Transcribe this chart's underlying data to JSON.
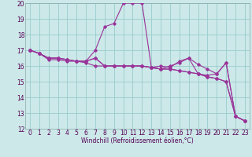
{
  "xlabel": "Windchill (Refroidissement éolien,°C)",
  "bg_color": "#cce8e8",
  "line_color": "#993399",
  "grid_color": "#99cccc",
  "series": [
    [
      17.0,
      16.8,
      16.4,
      16.4,
      16.3,
      16.3,
      16.2,
      16.0,
      16.0,
      16.0,
      16.0,
      16.0,
      16.0,
      15.9,
      15.8,
      15.8,
      15.7,
      15.6,
      15.5,
      15.3,
      15.2,
      15.0,
      12.8,
      12.5
    ],
    [
      17.0,
      16.8,
      16.5,
      16.5,
      16.4,
      16.3,
      16.3,
      17.0,
      18.5,
      18.7,
      20.0,
      20.0,
      20.0,
      15.9,
      16.0,
      15.9,
      16.3,
      16.5,
      16.1,
      15.8,
      15.5,
      16.2,
      12.8,
      12.5
    ],
    [
      17.0,
      16.8,
      16.5,
      16.5,
      16.4,
      16.3,
      16.3,
      16.5,
      16.0,
      16.0,
      16.0,
      16.0,
      16.0,
      15.9,
      15.8,
      16.0,
      16.2,
      16.5,
      15.5,
      15.4,
      15.5,
      16.2,
      12.8,
      12.5
    ],
    [
      17.0,
      16.8,
      16.5,
      16.5,
      16.4,
      16.3,
      16.3,
      16.5,
      16.0,
      16.0,
      16.0,
      16.0,
      16.0,
      15.9,
      15.8,
      15.8,
      15.7,
      15.6,
      15.5,
      15.3,
      15.2,
      15.0,
      12.8,
      12.5
    ]
  ],
  "xmin": -0.5,
  "xmax": 23.5,
  "ymin": 12,
  "ymax": 20,
  "yticks": [
    12,
    13,
    14,
    15,
    16,
    17,
    18,
    19,
    20
  ],
  "xticks": [
    0,
    1,
    2,
    3,
    4,
    5,
    6,
    7,
    8,
    9,
    10,
    11,
    12,
    13,
    14,
    15,
    16,
    17,
    18,
    19,
    20,
    21,
    22,
    23
  ],
  "tick_fontsize": 5.5,
  "xlabel_fontsize": 5.5,
  "label_color": "#550055"
}
